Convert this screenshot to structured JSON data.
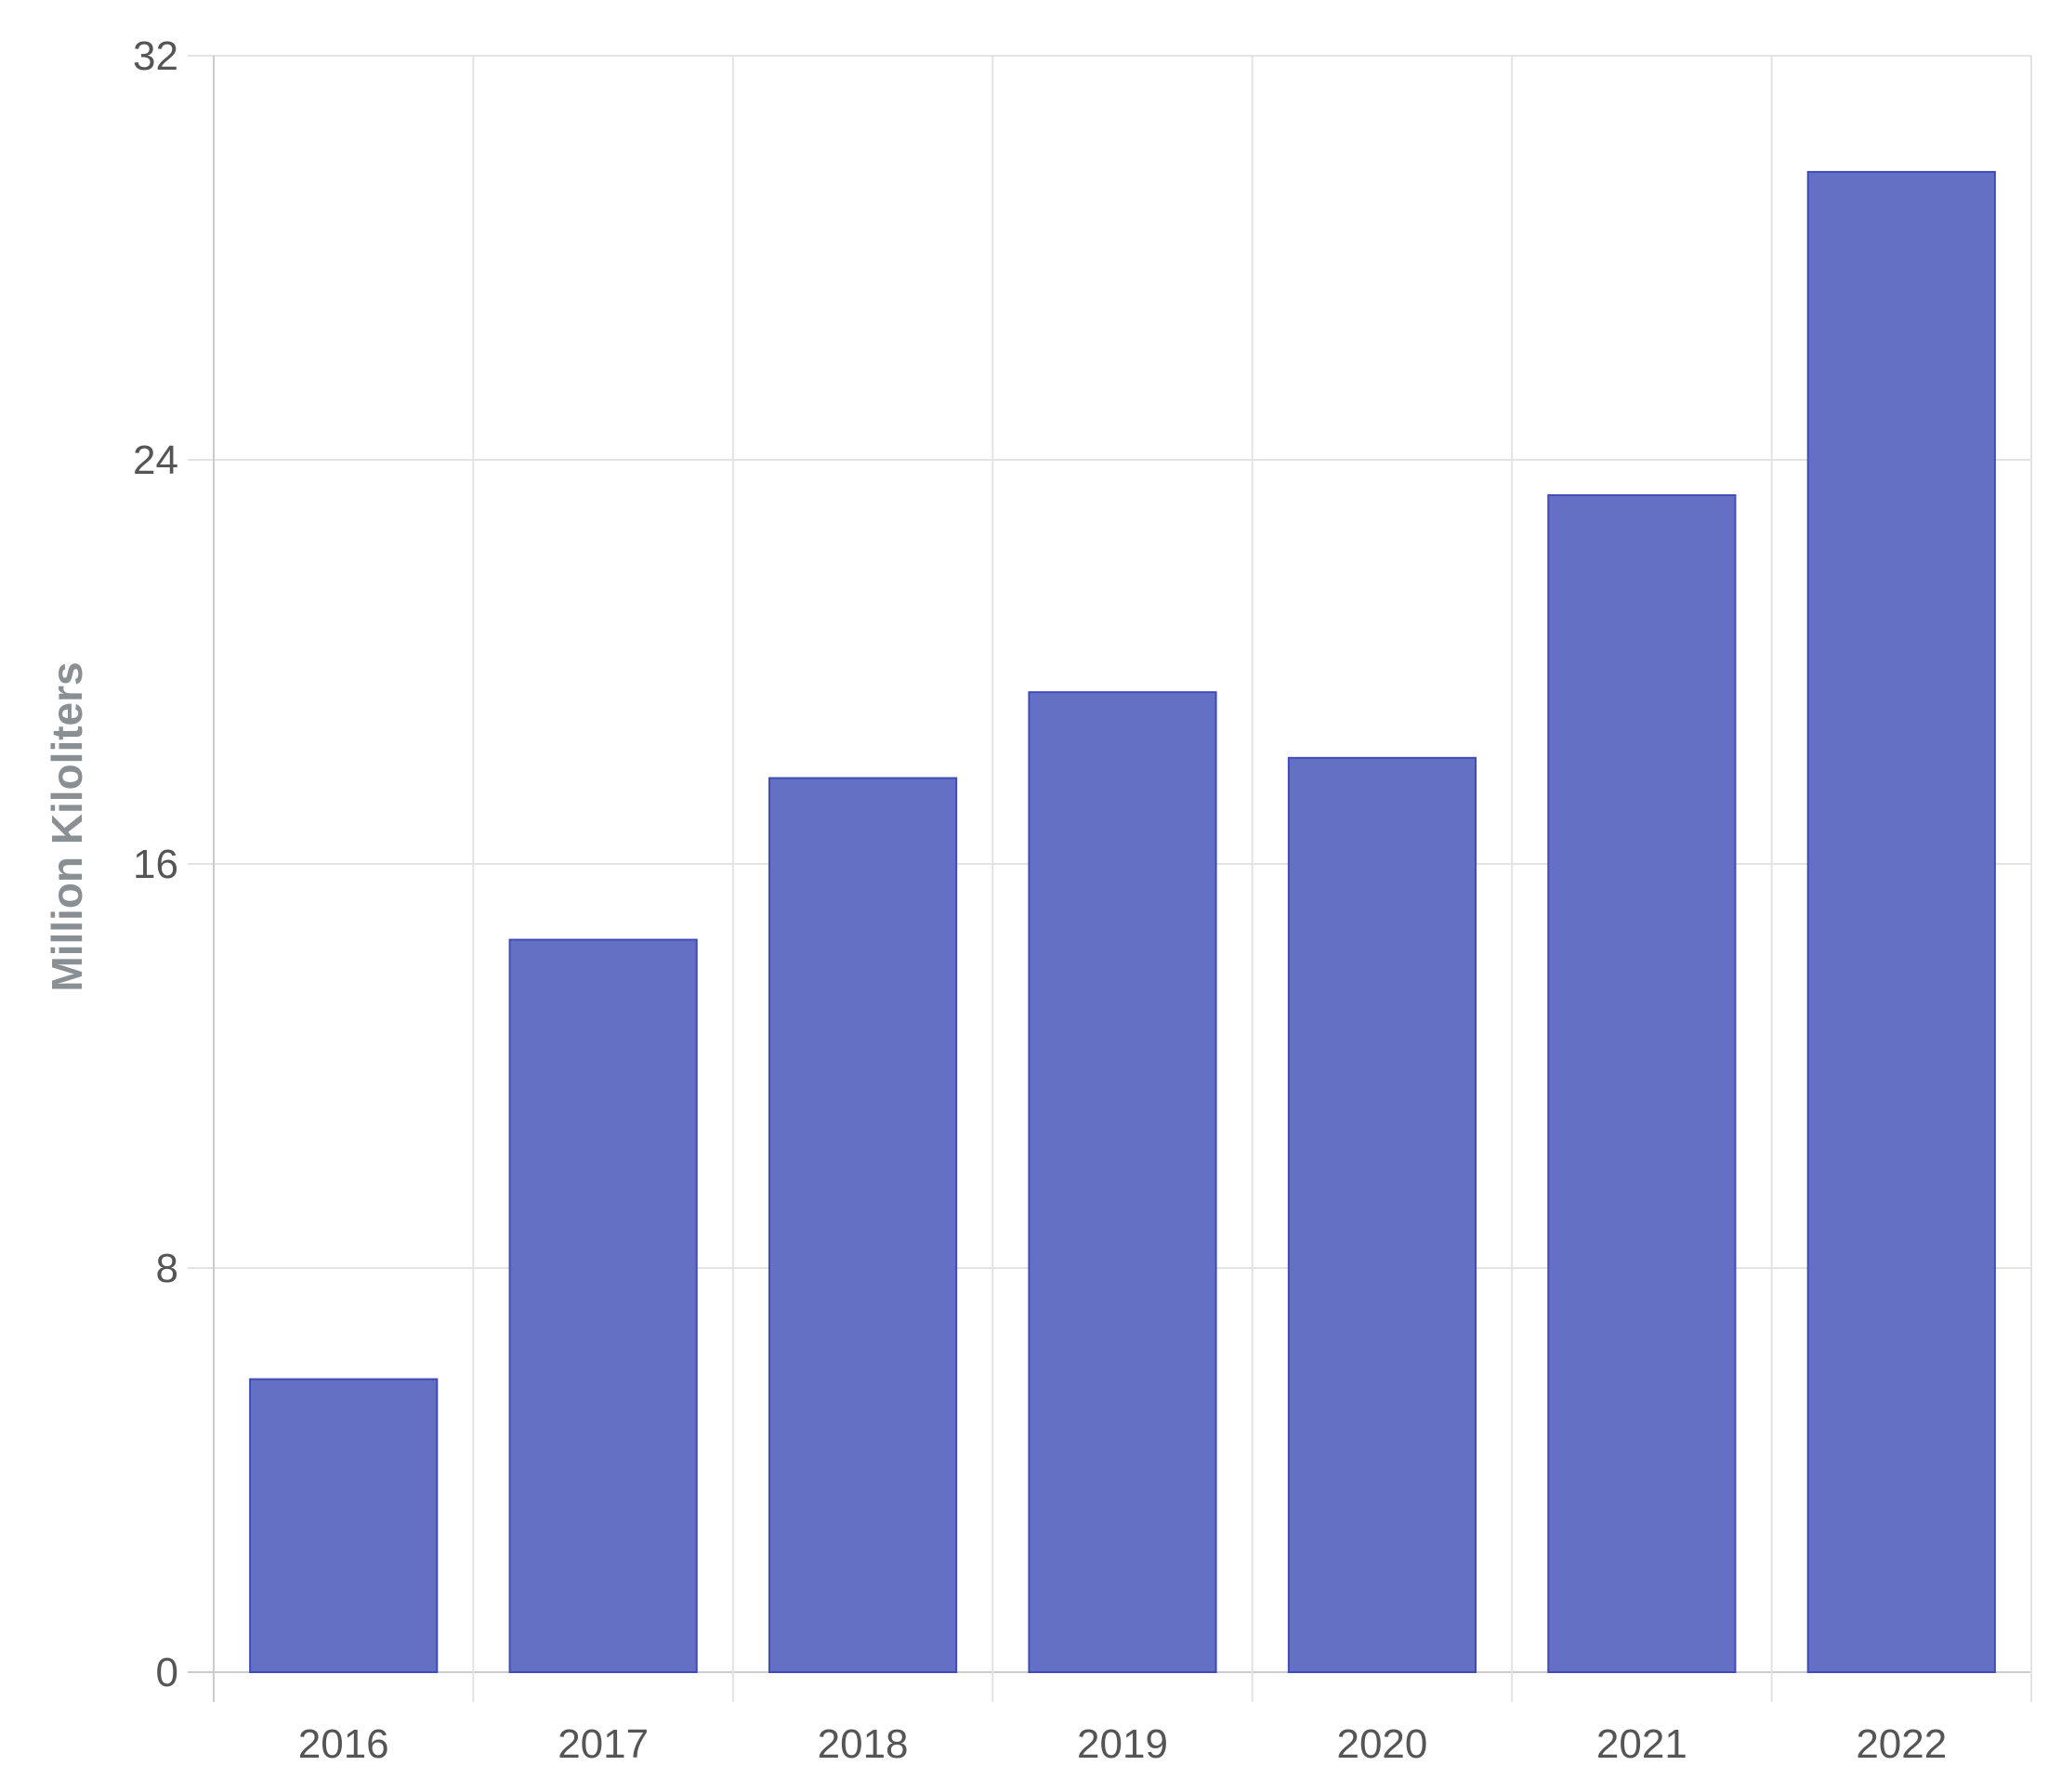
{
  "chart_data": {
    "type": "bar",
    "title": "",
    "xlabel": "",
    "ylabel": "Million Kiloliters",
    "categories": [
      "2016",
      "2017",
      "2018",
      "2019",
      "2020",
      "2021",
      "2022"
    ],
    "values": [
      5.8,
      14.5,
      17.7,
      19.4,
      18.1,
      23.3,
      29.7
    ],
    "ylim": [
      0,
      32
    ],
    "yticks": [
      0,
      8,
      16,
      24,
      32
    ],
    "grid": true,
    "legend": "none",
    "colors": {
      "bar_fill": "#6470c4",
      "bar_stroke": "#3f4bb8",
      "grid": "#e3e3e3",
      "axis": "#cccccc"
    }
  }
}
